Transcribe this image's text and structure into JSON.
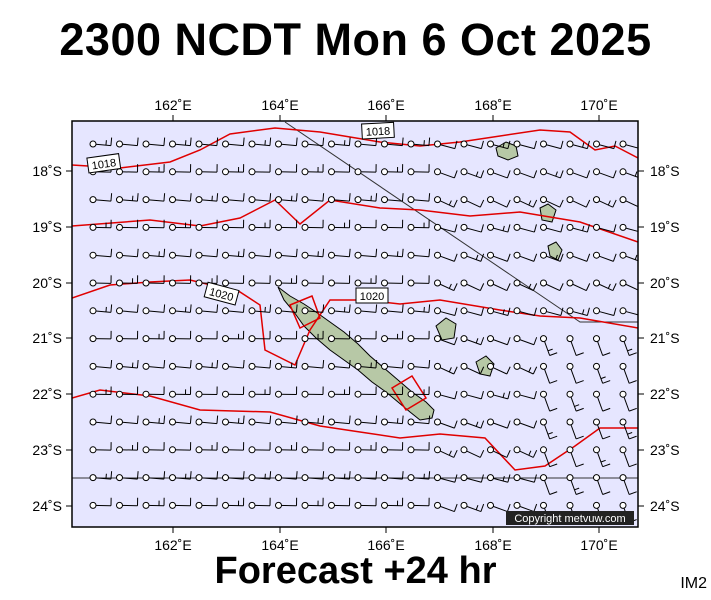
{
  "header": {
    "title": "2300 NCDT Mon 6 Oct 2025"
  },
  "footer": {
    "forecast": "Forecast +24 hr",
    "code": "IM2",
    "copyright": "Copyright metvuw.com"
  },
  "map": {
    "lon_range": [
      160.2,
      171.0
    ],
    "lat_range": [
      -24.4,
      -17.0
    ],
    "colors": {
      "ocean": "#e6e6ff",
      "land": "#b7c8a6",
      "isobar": "#e00000",
      "barb": "#000000"
    },
    "lon_ticks": [
      "162˚E",
      "164˚E",
      "166˚E",
      "168˚E",
      "170˚E"
    ],
    "lat_ticks": [
      "18˚S",
      "19˚S",
      "20˚S",
      "21˚S",
      "22˚S",
      "23˚S",
      "24˚S"
    ],
    "isobar_labels": [
      "1018",
      "1018",
      "1020",
      "1020"
    ]
  }
}
